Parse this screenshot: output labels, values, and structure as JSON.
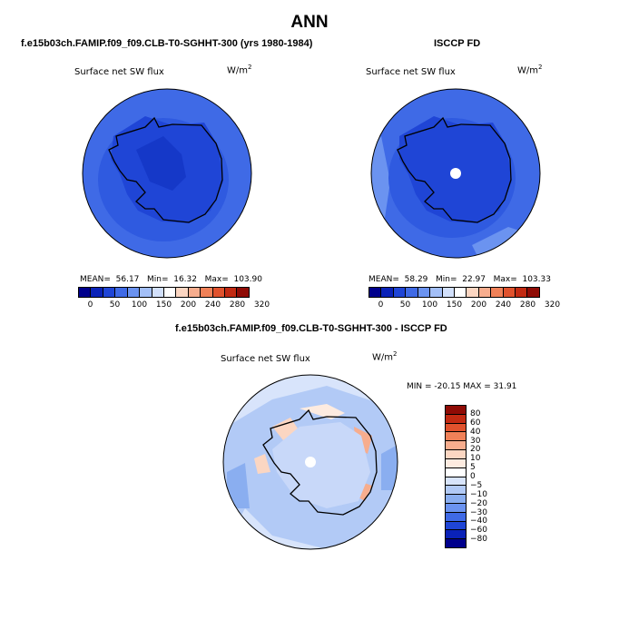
{
  "title": "ANN",
  "panel1": {
    "subtitle": "f.e15b03ch.FAMIP.f09_f09.CLB-T0-SGHHT-300 (yrs 1980-1984)",
    "field": "Surface net SW flux",
    "units_base": "W/m",
    "units_exp": "2",
    "mean_label": "MEAN=",
    "mean": "56.17",
    "min_label": "Min=",
    "min": "16.32",
    "max_label": "Max=",
    "max": "103.90"
  },
  "panel2": {
    "subtitle": "ISCCP FD",
    "field": "Surface net SW flux",
    "units_base": "W/m",
    "units_exp": "2",
    "mean_label": "MEAN=",
    "mean": "58.29",
    "min_label": "Min=",
    "min": "22.97",
    "max_label": "Max=",
    "max": "103.33"
  },
  "panel3": {
    "subtitle": "f.e15b03ch.FAMIP.f09_f09.CLB-T0-SGHHT-300 - ISCCP FD",
    "field": "Surface net SW flux",
    "units_base": "W/m",
    "units_exp": "2",
    "minmax": "MIN = -20.15 MAX = 31.91"
  },
  "colorbar_abs": {
    "ticks": [
      "0",
      "50",
      "100",
      "150",
      "200",
      "240",
      "280",
      "320"
    ],
    "colors": [
      "#00008c",
      "#0a22b8",
      "#1f45d6",
      "#3f6ae6",
      "#6b93f0",
      "#a3bff7",
      "#d2e0fb",
      "#ffffff",
      "#fbd6c2",
      "#f7ad8e",
      "#f08158",
      "#e0522d",
      "#c22a12",
      "#8f0b05"
    ]
  },
  "colorbar_diff": {
    "labels": [
      "80",
      "60",
      "40",
      "30",
      "20",
      "10",
      "5",
      "0",
      "−5",
      "−10",
      "−20",
      "−30",
      "−40",
      "−60",
      "−80"
    ],
    "colors": [
      "#8f0b05",
      "#c22a12",
      "#e0522d",
      "#f08158",
      "#f7ad8e",
      "#fbd6c2",
      "#fdebe0",
      "#ffffff",
      "#d8e4fb",
      "#b2caf6",
      "#8aaef0",
      "#6b93f0",
      "#3f6ae6",
      "#1f45d6",
      "#0a22b8",
      "#00008c"
    ]
  }
}
